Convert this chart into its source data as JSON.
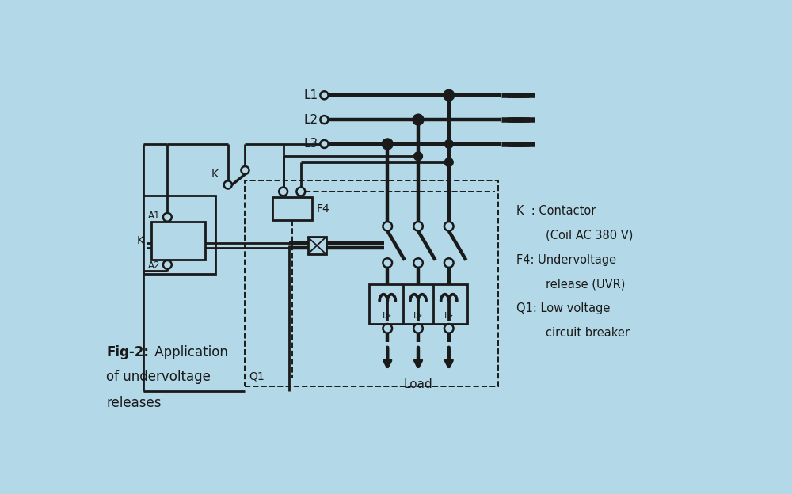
{
  "bg_color": "#b3d9e8",
  "line_color": "#1a1a1a",
  "lw": 2.0,
  "tlw": 3.2,
  "fig_width": 10.0,
  "fig_height": 6.24,
  "legend_lines": [
    [
      "K  : Contactor",
      false
    ],
    [
      "        (Coil AC 380 V)",
      false
    ],
    [
      "F4: Undervoltage",
      false
    ],
    [
      "        release (UVR)",
      false
    ],
    [
      "Q1: Low voltage",
      false
    ],
    [
      "        circuit breaker",
      false
    ]
  ],
  "L1y": 5.65,
  "L2y": 5.25,
  "L3y": 4.85,
  "col1x": 4.7,
  "col2x": 5.2,
  "col3x": 5.7
}
